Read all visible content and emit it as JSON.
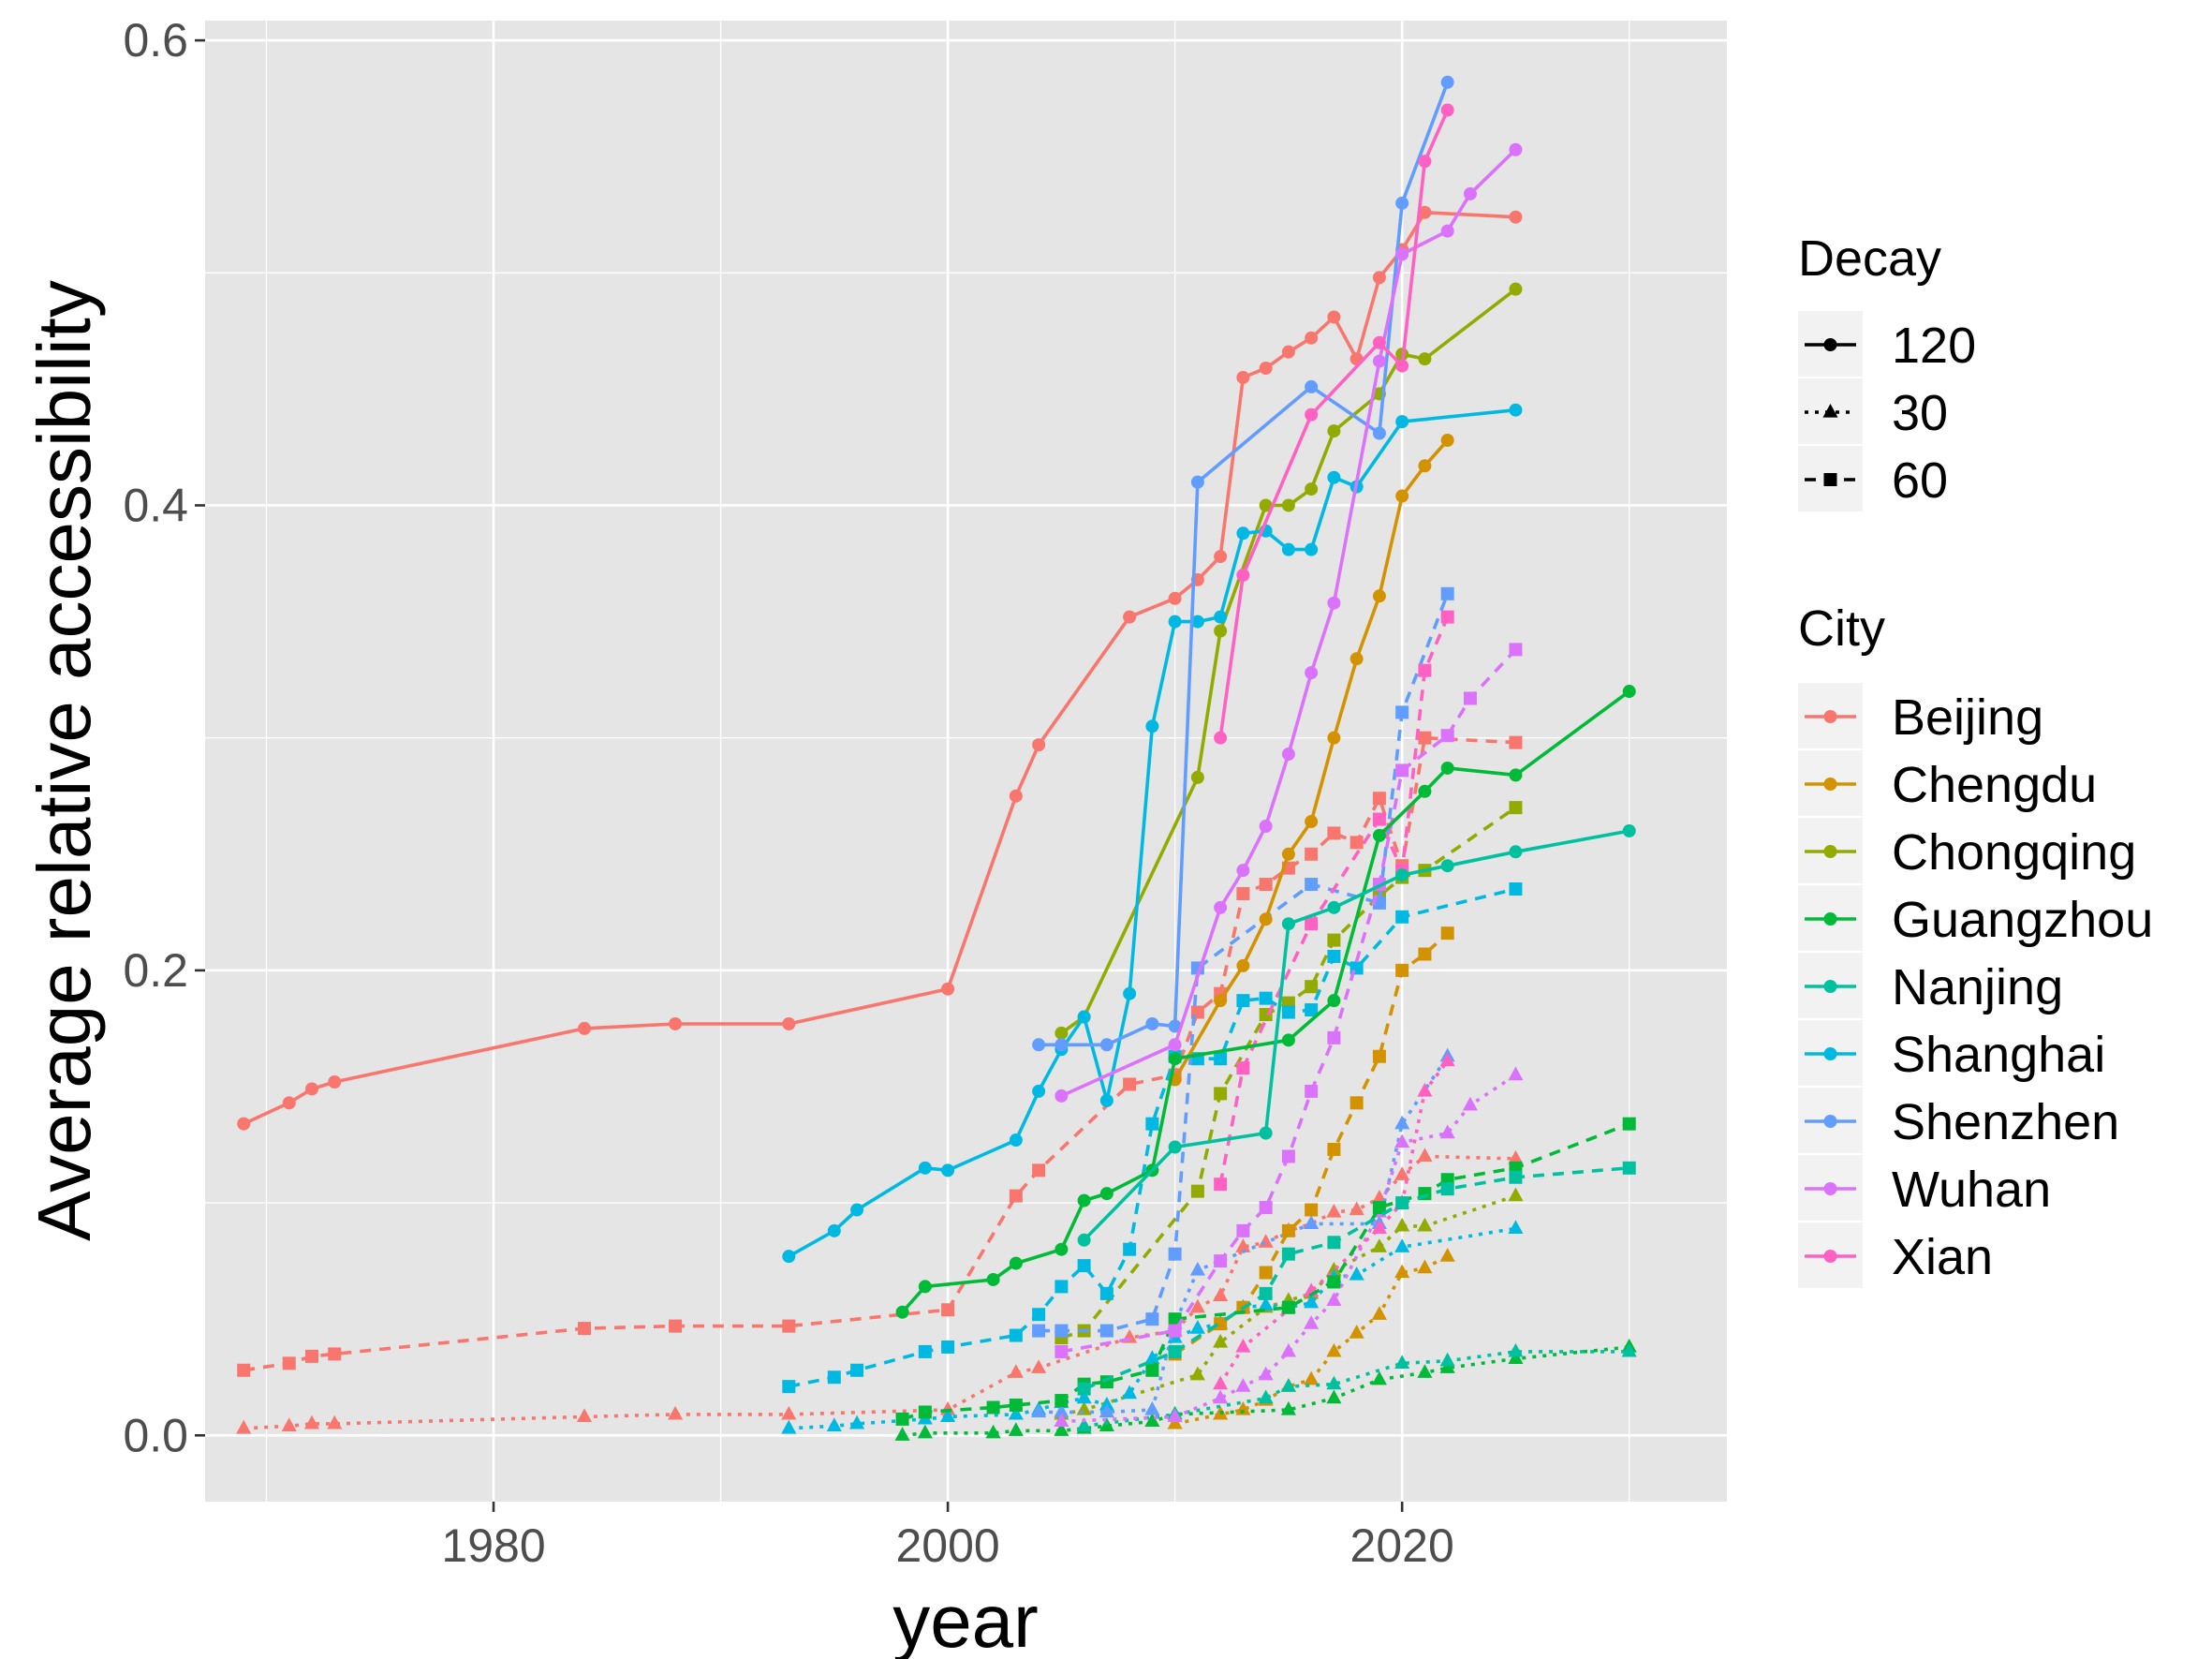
{
  "chart_data": {
    "type": "line",
    "xlabel": "year",
    "ylabel": "Average relative accessibility",
    "xlim": [
      1967.3,
      2034.3
    ],
    "ylim": [
      -0.0285,
      0.6085
    ],
    "x_ticks": [
      1980,
      2000,
      2020
    ],
    "x_tick_labels": [
      "1980",
      "2000",
      "2020"
    ],
    "x_minor_ticks": [
      1970,
      1990,
      2010,
      2030
    ],
    "y_ticks": [
      0.0,
      0.2,
      0.4,
      0.6
    ],
    "y_tick_labels": [
      "0.0",
      "0.2",
      "0.4",
      "0.6"
    ],
    "y_minor_ticks": [
      0.1,
      0.3,
      0.5
    ],
    "grid": true,
    "legend_position": "right",
    "legends": [
      {
        "title": "Decay",
        "items": [
          {
            "label": "120",
            "shape": "circle",
            "linetype": "solid"
          },
          {
            "label": "30",
            "shape": "triangle",
            "linetype": "dotted"
          },
          {
            "label": "60",
            "shape": "square",
            "linetype": "dashed"
          }
        ]
      },
      {
        "title": "City",
        "items": [
          {
            "label": "Beijing",
            "color": "#F8766D"
          },
          {
            "label": "Chengdu",
            "color": "#D39200"
          },
          {
            "label": "Chongqing",
            "color": "#93AA00"
          },
          {
            "label": "Guangzhou",
            "color": "#00BA38"
          },
          {
            "label": "Nanjing",
            "color": "#00C19F"
          },
          {
            "label": "Shanghai",
            "color": "#00B9E3"
          },
          {
            "label": "Shenzhen",
            "color": "#619CFF"
          },
          {
            "label": "Wuhan",
            "color": "#DB72FB"
          },
          {
            "label": "Xian",
            "color": "#FF61C3"
          }
        ]
      }
    ],
    "series": [
      {
        "city": "Beijing",
        "decay": "120",
        "x": [
          1969,
          1971,
          1972,
          1973,
          1984,
          1988,
          1993,
          2000,
          2003,
          2004,
          2008,
          2010,
          2011,
          2012,
          2013,
          2014,
          2015,
          2016,
          2017,
          2018,
          2019,
          2020,
          2021,
          2025
        ],
        "y": [
          0.134,
          0.143,
          0.149,
          0.152,
          0.175,
          0.177,
          0.177,
          0.192,
          0.275,
          0.297,
          0.352,
          0.36,
          0.368,
          0.378,
          0.455,
          0.459,
          0.466,
          0.472,
          0.481,
          0.463,
          0.498,
          0.51,
          0.526,
          0.524
        ]
      },
      {
        "city": "Beijing",
        "decay": "60",
        "x": [
          1969,
          1971,
          1972,
          1973,
          1984,
          1988,
          1993,
          2000,
          2003,
          2004,
          2008,
          2010,
          2011,
          2012,
          2013,
          2014,
          2015,
          2016,
          2017,
          2018,
          2019,
          2020,
          2021,
          2025
        ],
        "y": [
          0.028,
          0.031,
          0.034,
          0.035,
          0.046,
          0.047,
          0.047,
          0.054,
          0.103,
          0.114,
          0.151,
          0.155,
          0.182,
          0.19,
          0.233,
          0.237,
          0.244,
          0.25,
          0.259,
          0.255,
          0.274,
          0.245,
          0.3,
          0.298
        ]
      },
      {
        "city": "Beijing",
        "decay": "30",
        "x": [
          1969,
          1971,
          1972,
          1973,
          1984,
          1988,
          1993,
          2000,
          2003,
          2004,
          2008,
          2010,
          2011,
          2012,
          2013,
          2014,
          2015,
          2016,
          2017,
          2018,
          2019,
          2020,
          2021,
          2025
        ],
        "y": [
          0.003,
          0.004,
          0.005,
          0.005,
          0.008,
          0.009,
          0.009,
          0.011,
          0.027,
          0.029,
          0.042,
          0.045,
          0.055,
          0.06,
          0.081,
          0.083,
          0.088,
          0.091,
          0.096,
          0.097,
          0.102,
          0.112,
          0.12,
          0.119
        ]
      },
      {
        "city": "Chengdu",
        "decay": "120",
        "x": [
          2010,
          2012,
          2013,
          2014,
          2015,
          2016,
          2017,
          2018,
          2019,
          2020,
          2021,
          2022
        ],
        "y": [
          0.153,
          0.187,
          0.202,
          0.222,
          0.25,
          0.264,
          0.3,
          0.334,
          0.361,
          0.404,
          0.417,
          0.428
        ]
      },
      {
        "city": "Chengdu",
        "decay": "60",
        "x": [
          2010,
          2012,
          2013,
          2014,
          2015,
          2016,
          2017,
          2018,
          2019,
          2020,
          2021,
          2022
        ],
        "y": [
          0.035,
          0.048,
          0.055,
          0.07,
          0.088,
          0.097,
          0.123,
          0.143,
          0.163,
          0.2,
          0.207,
          0.216
        ]
      },
      {
        "city": "Chengdu",
        "decay": "30",
        "x": [
          2010,
          2012,
          2013,
          2014,
          2015,
          2016,
          2017,
          2018,
          2019,
          2020,
          2021,
          2022
        ],
        "y": [
          0.005,
          0.009,
          0.011,
          0.015,
          0.021,
          0.024,
          0.036,
          0.044,
          0.052,
          0.07,
          0.072,
          0.077
        ]
      },
      {
        "city": "Chongqing",
        "decay": "120",
        "x": [
          2005,
          2006,
          2011,
          2012,
          2014,
          2015,
          2016,
          2017,
          2019,
          2020,
          2021,
          2025
        ],
        "y": [
          0.173,
          0.18,
          0.283,
          0.346,
          0.4,
          0.4,
          0.407,
          0.432,
          0.448,
          0.465,
          0.463,
          0.493
        ]
      },
      {
        "city": "Chongqing",
        "decay": "60",
        "x": [
          2005,
          2006,
          2011,
          2012,
          2014,
          2015,
          2016,
          2017,
          2019,
          2020,
          2021,
          2025
        ],
        "y": [
          0.042,
          0.045,
          0.105,
          0.147,
          0.181,
          0.186,
          0.193,
          0.213,
          0.232,
          0.24,
          0.243,
          0.27
        ]
      },
      {
        "city": "Chongqing",
        "decay": "30",
        "x": [
          2005,
          2006,
          2011,
          2012,
          2014,
          2015,
          2016,
          2017,
          2019,
          2020,
          2021,
          2025
        ],
        "y": [
          0.009,
          0.011,
          0.026,
          0.04,
          0.055,
          0.058,
          0.061,
          0.071,
          0.081,
          0.09,
          0.09,
          0.103
        ]
      },
      {
        "city": "Guangzhou",
        "decay": "120",
        "x": [
          1998,
          1999,
          2002,
          2003,
          2005,
          2006,
          2007,
          2009,
          2010,
          2015,
          2017,
          2019,
          2021,
          2022,
          2025,
          2030
        ],
        "y": [
          0.053,
          0.064,
          0.067,
          0.074,
          0.08,
          0.101,
          0.104,
          0.114,
          0.162,
          0.17,
          0.187,
          0.258,
          0.277,
          0.287,
          0.284,
          0.32
        ]
      },
      {
        "city": "Guangzhou",
        "decay": "60",
        "x": [
          1998,
          1999,
          2002,
          2003,
          2005,
          2006,
          2007,
          2009,
          2010,
          2015,
          2017,
          2019,
          2021,
          2022,
          2025,
          2030
        ],
        "y": [
          0.007,
          0.01,
          0.012,
          0.013,
          0.015,
          0.022,
          0.023,
          0.028,
          0.05,
          0.055,
          0.066,
          0.098,
          0.104,
          0.11,
          0.115,
          0.134
        ]
      },
      {
        "city": "Guangzhou",
        "decay": "30",
        "x": [
          1998,
          1999,
          2002,
          2003,
          2005,
          2006,
          2007,
          2009,
          2010,
          2015,
          2017,
          2019,
          2021,
          2022,
          2025,
          2030
        ],
        "y": [
          0.0,
          0.001,
          0.001,
          0.002,
          0.002,
          0.003,
          0.004,
          0.006,
          0.009,
          0.011,
          0.016,
          0.024,
          0.027,
          0.029,
          0.033,
          0.038
        ]
      },
      {
        "city": "Nanjing",
        "decay": "120",
        "x": [
          2006,
          2010,
          2014,
          2015,
          2017,
          2020,
          2022,
          2025,
          2030
        ],
        "y": [
          0.084,
          0.124,
          0.13,
          0.22,
          0.227,
          0.241,
          0.245,
          0.251,
          0.26
        ]
      },
      {
        "city": "Nanjing",
        "decay": "60",
        "x": [
          2006,
          2010,
          2014,
          2015,
          2017,
          2020,
          2022,
          2025,
          2030
        ],
        "y": [
          0.02,
          0.036,
          0.061,
          0.078,
          0.083,
          0.1,
          0.106,
          0.111,
          0.115
        ]
      },
      {
        "city": "Nanjing",
        "decay": "30",
        "x": [
          2006,
          2010,
          2014,
          2015,
          2017,
          2020,
          2022,
          2025,
          2030
        ],
        "y": [
          0.004,
          0.009,
          0.016,
          0.021,
          0.022,
          0.031,
          0.032,
          0.036,
          0.036
        ]
      },
      {
        "city": "Shanghai",
        "decay": "120",
        "x": [
          1993,
          1995,
          1996,
          1999,
          2000,
          2003,
          2004,
          2005,
          2006,
          2007,
          2008,
          2009,
          2010,
          2011,
          2012,
          2013,
          2014,
          2015,
          2016,
          2017,
          2018,
          2020,
          2025
        ],
        "y": [
          0.077,
          0.088,
          0.097,
          0.115,
          0.114,
          0.127,
          0.148,
          0.166,
          0.18,
          0.144,
          0.19,
          0.305,
          0.35,
          0.35,
          0.352,
          0.388,
          0.389,
          0.381,
          0.381,
          0.412,
          0.408,
          0.436,
          0.441
        ]
      },
      {
        "city": "Shanghai",
        "decay": "60",
        "x": [
          1993,
          1995,
          1996,
          1999,
          2000,
          2003,
          2004,
          2005,
          2006,
          2007,
          2008,
          2009,
          2010,
          2011,
          2012,
          2013,
          2014,
          2015,
          2016,
          2017,
          2018,
          2020,
          2025
        ],
        "y": [
          0.021,
          0.025,
          0.028,
          0.036,
          0.038,
          0.043,
          0.052,
          0.064,
          0.073,
          0.061,
          0.08,
          0.134,
          0.163,
          0.162,
          0.162,
          0.187,
          0.188,
          0.182,
          0.183,
          0.206,
          0.201,
          0.223,
          0.235
        ]
      },
      {
        "city": "Shanghai",
        "decay": "30",
        "x": [
          1993,
          1995,
          1996,
          1999,
          2000,
          2003,
          2004,
          2005,
          2006,
          2007,
          2008,
          2009,
          2010,
          2011,
          2012,
          2013,
          2014,
          2015,
          2016,
          2017,
          2018,
          2020,
          2025
        ],
        "y": [
          0.003,
          0.004,
          0.005,
          0.007,
          0.008,
          0.009,
          0.011,
          0.014,
          0.016,
          0.013,
          0.018,
          0.033,
          0.042,
          0.046,
          0.048,
          0.055,
          0.056,
          0.055,
          0.057,
          0.068,
          0.069,
          0.081,
          0.089
        ]
      },
      {
        "city": "Shenzhen",
        "decay": "120",
        "x": [
          2004,
          2005,
          2007,
          2009,
          2010,
          2011,
          2016,
          2019,
          2020,
          2022
        ],
        "y": [
          0.168,
          0.168,
          0.168,
          0.177,
          0.176,
          0.41,
          0.451,
          0.431,
          0.53,
          0.582
        ]
      },
      {
        "city": "Shenzhen",
        "decay": "60",
        "x": [
          2004,
          2005,
          2007,
          2009,
          2010,
          2011,
          2016,
          2019,
          2020,
          2022
        ],
        "y": [
          0.045,
          0.045,
          0.045,
          0.05,
          0.078,
          0.201,
          0.237,
          0.229,
          0.311,
          0.362
        ]
      },
      {
        "city": "Shenzhen",
        "decay": "30",
        "x": [
          2004,
          2005,
          2007,
          2009,
          2010,
          2011,
          2016,
          2019,
          2020,
          2022
        ],
        "y": [
          0.01,
          0.01,
          0.01,
          0.011,
          0.048,
          0.071,
          0.091,
          0.091,
          0.134,
          0.163
        ]
      },
      {
        "city": "Wuhan",
        "decay": "120",
        "x": [
          2005,
          2010,
          2012,
          2013,
          2014,
          2015,
          2016,
          2017,
          2019,
          2020,
          2022,
          2023,
          2025
        ],
        "y": [
          0.146,
          0.168,
          0.227,
          0.243,
          0.262,
          0.293,
          0.328,
          0.358,
          0.462,
          0.508,
          0.518,
          0.534,
          0.553
        ]
      },
      {
        "city": "Wuhan",
        "decay": "60",
        "x": [
          2005,
          2010,
          2012,
          2013,
          2014,
          2015,
          2016,
          2017,
          2019,
          2020,
          2022,
          2023,
          2025
        ],
        "y": [
          0.036,
          0.045,
          0.075,
          0.088,
          0.098,
          0.12,
          0.148,
          0.171,
          0.237,
          0.286,
          0.301,
          0.317,
          0.338
        ]
      },
      {
        "city": "Wuhan",
        "decay": "30",
        "x": [
          2005,
          2010,
          2012,
          2013,
          2014,
          2015,
          2016,
          2017,
          2019,
          2020,
          2022,
          2023,
          2025
        ],
        "y": [
          0.006,
          0.008,
          0.016,
          0.021,
          0.026,
          0.036,
          0.048,
          0.058,
          0.096,
          0.126,
          0.13,
          0.142,
          0.155
        ]
      },
      {
        "city": "Xian",
        "decay": "120",
        "x": [
          2012,
          2013,
          2016,
          2019,
          2020,
          2021,
          2022
        ],
        "y": [
          0.3,
          0.37,
          0.439,
          0.47,
          0.46,
          0.548,
          0.57
        ]
      },
      {
        "city": "Xian",
        "decay": "60",
        "x": [
          2012,
          2013,
          2016,
          2019,
          2020,
          2021,
          2022
        ],
        "y": [
          0.108,
          0.158,
          0.22,
          0.265,
          0.243,
          0.329,
          0.352
        ]
      },
      {
        "city": "Xian",
        "decay": "30",
        "x": [
          2012,
          2013,
          2016,
          2019,
          2020,
          2021,
          2022
        ],
        "y": [
          0.022,
          0.038,
          0.062,
          0.089,
          0.1,
          0.148,
          0.161
        ]
      }
    ]
  }
}
